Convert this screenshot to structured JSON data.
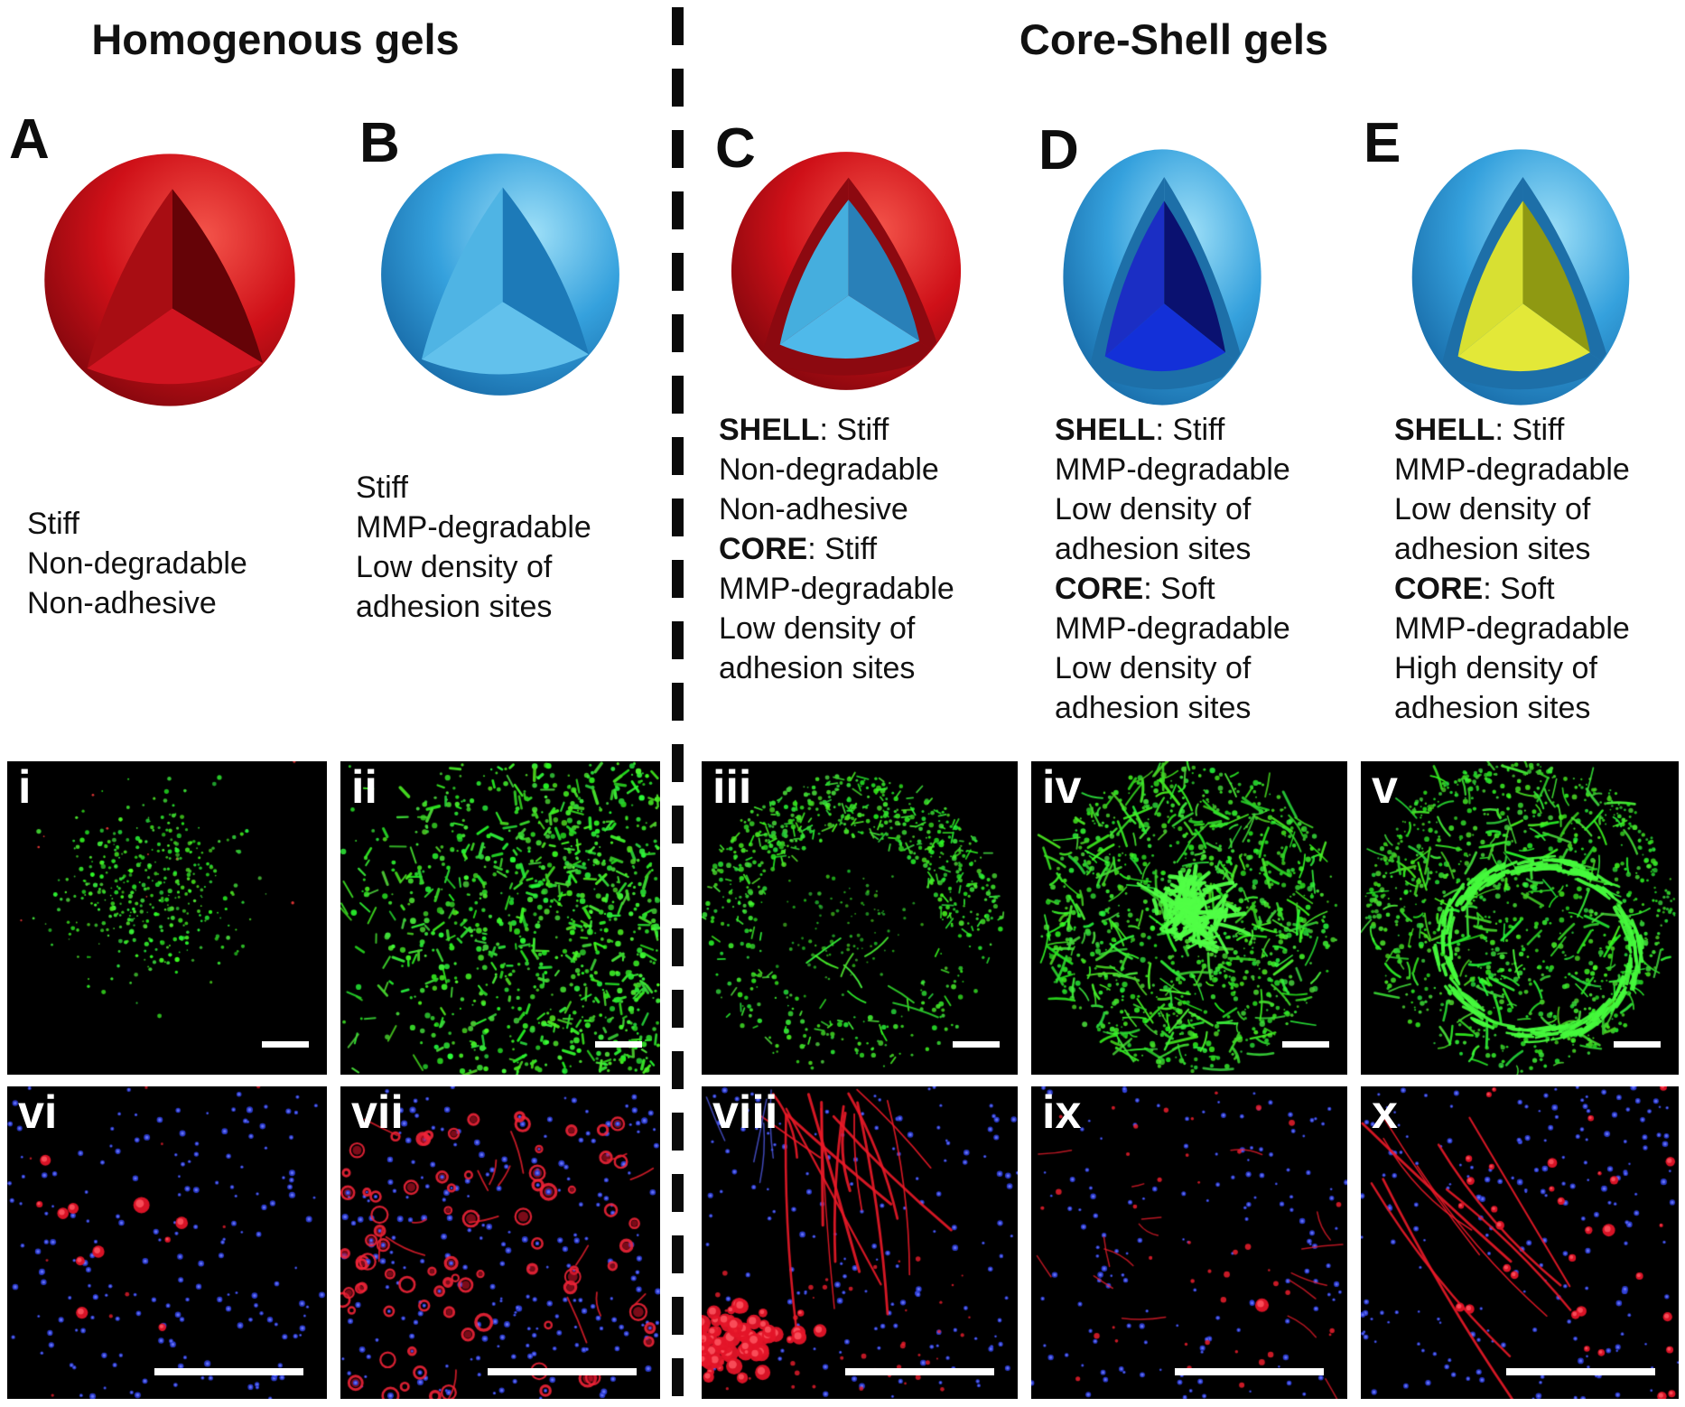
{
  "figure": {
    "left_section_title": "Homogenous gels",
    "right_section_title": "Core-Shell gels"
  },
  "colors": {
    "green_signal": "#2ee830",
    "red_signal": "#e81a2c",
    "blue_nuclei": "#2f3fd8",
    "panel_background": "#000000",
    "scalebar": "#ffffff",
    "divider": "#0a0a0a"
  },
  "gels": [
    {
      "id": "A",
      "label": "A",
      "category": "homogeneous",
      "sphere": {
        "shell": {
          "light": "#f4554b",
          "mid": "#cf1018",
          "dark": "#7a060c"
        },
        "wedge": {
          "left": "#a80d13",
          "right": "#650307",
          "bottom": "#d01420"
        },
        "rim": null,
        "core": null
      },
      "description": [
        {
          "b": "",
          "t": "Stiff"
        },
        {
          "b": "",
          "t": "Non-degradable"
        },
        {
          "b": "",
          "t": "Non-adhesive"
        }
      ]
    },
    {
      "id": "B",
      "label": "B",
      "category": "homogeneous",
      "sphere": {
        "shell": {
          "light": "#9fe0f8",
          "mid": "#35a1dd",
          "dark": "#1566a3"
        },
        "wedge": {
          "left": "#4fb4e4",
          "right": "#1d7ab8",
          "bottom": "#62c1ec"
        },
        "rim": null,
        "core": null
      },
      "description": [
        {
          "b": "",
          "t": "Stiff"
        },
        {
          "b": "",
          "t": "MMP-degradable"
        },
        {
          "b": "",
          "t": "Low density of"
        },
        {
          "b": "",
          "t": "adhesion sites"
        }
      ]
    },
    {
      "id": "C",
      "label": "C",
      "category": "core-shell",
      "sphere": {
        "shell": {
          "light": "#f4554b",
          "mid": "#cf1018",
          "dark": "#7a060c"
        },
        "wedge": null,
        "rim": "#8c0910",
        "core": {
          "left": "#45aede",
          "right": "#2980b8",
          "bottom": "#4fb9ea"
        }
      },
      "description": [
        {
          "b": "SHELL",
          "t": ": Stiff"
        },
        {
          "b": "",
          "t": "Non-degradable"
        },
        {
          "b": "",
          "t": "Non-adhesive"
        },
        {
          "b": "CORE",
          "t": ": Stiff"
        },
        {
          "b": "",
          "t": "MMP-degradable"
        },
        {
          "b": "",
          "t": "Low density of"
        },
        {
          "b": "",
          "t": "adhesion sites"
        }
      ]
    },
    {
      "id": "D",
      "label": "D",
      "category": "core-shell",
      "sphere": {
        "shell": {
          "light": "#9fe0f8",
          "mid": "#35a1dd",
          "dark": "#1566a3"
        },
        "wedge": null,
        "rim": "#1d6fa8",
        "core": {
          "left": "#1b2ec4",
          "right": "#0a1170",
          "bottom": "#1330d8"
        }
      },
      "description": [
        {
          "b": "SHELL",
          "t": ": Stiff"
        },
        {
          "b": "",
          "t": "MMP-degradable"
        },
        {
          "b": "",
          "t": "Low density of"
        },
        {
          "b": "",
          "t": "adhesion sites"
        },
        {
          "b": "CORE",
          "t": ": Soft"
        },
        {
          "b": "",
          "t": "MMP-degradable"
        },
        {
          "b": "",
          "t": "Low density of"
        },
        {
          "b": "",
          "t": "adhesion sites"
        }
      ]
    },
    {
      "id": "E",
      "label": "E",
      "category": "core-shell",
      "sphere": {
        "shell": {
          "light": "#9fe0f8",
          "mid": "#35a1dd",
          "dark": "#1566a3"
        },
        "wedge": null,
        "rim": "#1d6fa8",
        "core": {
          "left": "#d8e032",
          "right": "#8f9912",
          "bottom": "#e3e838"
        }
      },
      "description": [
        {
          "b": "SHELL",
          "t": ": Stiff"
        },
        {
          "b": "",
          "t": "MMP-degradable"
        },
        {
          "b": "",
          "t": "Low density of"
        },
        {
          "b": "",
          "t": "adhesion sites"
        },
        {
          "b": "CORE",
          "t": ": Soft"
        },
        {
          "b": "",
          "t": "MMP-degradable"
        },
        {
          "b": "",
          "t": "High density of"
        },
        {
          "b": "",
          "t": "adhesion sites"
        }
      ]
    }
  ],
  "panels": [
    {
      "id": "i",
      "label": "i",
      "stain": "green",
      "pattern": "sparse-dots",
      "scalebar": "short"
    },
    {
      "id": "ii",
      "label": "ii",
      "stain": "green",
      "pattern": "dense-spread",
      "scalebar": "short"
    },
    {
      "id": "iii",
      "label": "iii",
      "stain": "green",
      "pattern": "peripheral-ring",
      "scalebar": "short"
    },
    {
      "id": "iv",
      "label": "iv",
      "stain": "green",
      "pattern": "dense-network",
      "scalebar": "short"
    },
    {
      "id": "v",
      "label": "v",
      "stain": "green",
      "pattern": "ring-network",
      "scalebar": "short"
    },
    {
      "id": "vi",
      "label": "vi",
      "stain": "red-blue",
      "pattern": "sparse-cells",
      "scalebar": "long"
    },
    {
      "id": "vii",
      "label": "vii",
      "stain": "red-blue",
      "pattern": "spread-cells",
      "scalebar": "long"
    },
    {
      "id": "viii",
      "label": "viii",
      "stain": "red-blue",
      "pattern": "streaks-clusters",
      "scalebar": "long"
    },
    {
      "id": "ix",
      "label": "ix",
      "stain": "red-blue",
      "pattern": "sparse-strands",
      "scalebar": "long"
    },
    {
      "id": "x",
      "label": "x",
      "stain": "red-blue",
      "pattern": "long-fibers",
      "scalebar": "long"
    }
  ]
}
